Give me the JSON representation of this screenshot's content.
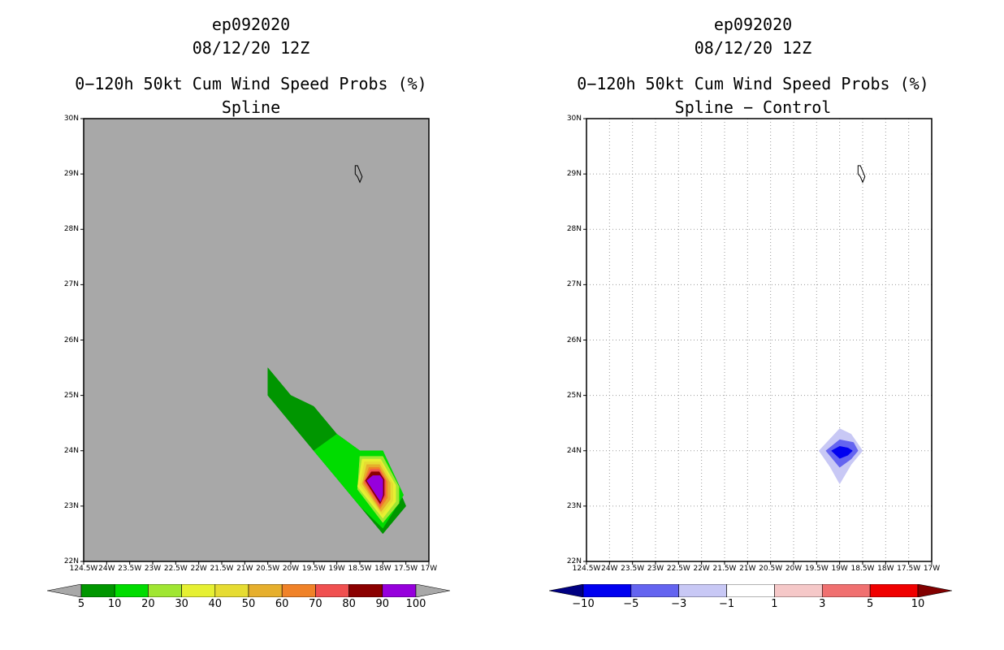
{
  "left_panel": {
    "storm_id": "ep092020",
    "datetime": "08/12/20 12Z",
    "product": "0−120h 50kt Cum Wind Speed Probs (%)",
    "subtitle": "Spline",
    "plot_bg": "#a8a8a8"
  },
  "right_panel": {
    "storm_id": "ep092020",
    "datetime": "08/12/20 12Z",
    "product": "0−120h 50kt Cum Wind Speed Probs (%)",
    "subtitle": "Spline − Control",
    "plot_bg": "#ffffff"
  },
  "chart_data": [
    {
      "type": "heatmap",
      "title": "0−120h 50kt Cum Wind Speed Probs (%) - Spline",
      "x_unit": "longitude (°W)",
      "y_unit": "latitude (°N)",
      "xlim": [
        124.5,
        17
      ],
      "ylim": [
        22,
        30
      ],
      "x_ticks": [
        "124.5W",
        "24W",
        "23.5W",
        "23W",
        "22.5W",
        "22W",
        "21.5W",
        "21W",
        "20.5W",
        "20W",
        "19.5W",
        "19W",
        "18.5W",
        "18W",
        "17.5W",
        "17W"
      ],
      "y_ticks": [
        "22N",
        "23N",
        "24N",
        "25N",
        "26N",
        "27N",
        "28N",
        "29N",
        "30N"
      ],
      "grid": false,
      "colorbar": {
        "labels": [
          "5",
          "10",
          "20",
          "30",
          "40",
          "50",
          "60",
          "70",
          "80",
          "90",
          "100"
        ],
        "colors": [
          "#009600",
          "#00dc00",
          "#a0e632",
          "#e6f032",
          "#e6dc32",
          "#e6af2d",
          "#f08228",
          "#f05050",
          "#8b0000",
          "#9600dc"
        ],
        "extend_colors": [
          "#a8a8a8",
          "#a8a8a8"
        ]
      },
      "contours": [
        {
          "level": 5,
          "color": "#009600",
          "points": [
            [
              20.5,
              25.5
            ],
            [
              20.0,
              25.0
            ],
            [
              19.5,
              24.8
            ],
            [
              19.0,
              24.3
            ],
            [
              18.5,
              24.0
            ],
            [
              18.0,
              24.0
            ],
            [
              17.5,
              23.0
            ],
            [
              18.0,
              22.5
            ],
            [
              18.5,
              23.0
            ],
            [
              19.0,
              23.5
            ],
            [
              19.5,
              24.0
            ],
            [
              20.0,
              24.5
            ],
            [
              20.5,
              25.0
            ]
          ]
        },
        {
          "level": 10,
          "color": "#00dc00",
          "points": [
            [
              19.5,
              24.0
            ],
            [
              19.0,
              24.3
            ],
            [
              18.5,
              24.0
            ],
            [
              18.0,
              24.0
            ],
            [
              17.55,
              23.2
            ],
            [
              18.0,
              22.6
            ],
            [
              18.5,
              23.0
            ],
            [
              19.0,
              23.5
            ]
          ]
        },
        {
          "level": 20,
          "color": "#a0e632",
          "points": [
            [
              18.5,
              23.9
            ],
            [
              18.0,
              23.9
            ],
            [
              17.65,
              23.35
            ],
            [
              17.65,
              23.05
            ],
            [
              18.0,
              22.7
            ],
            [
              18.55,
              23.3
            ]
          ]
        },
        {
          "level": 30,
          "color": "#e6f032",
          "points": [
            [
              18.45,
              23.85
            ],
            [
              18.05,
              23.85
            ],
            [
              17.72,
              23.38
            ],
            [
              17.72,
              23.08
            ],
            [
              18.0,
              22.78
            ],
            [
              18.55,
              23.35
            ]
          ]
        },
        {
          "level": 40,
          "color": "#e6dc32",
          "points": [
            [
              18.4,
              23.8
            ],
            [
              18.05,
              23.8
            ],
            [
              17.78,
              23.4
            ],
            [
              17.78,
              23.1
            ],
            [
              18.02,
              22.85
            ],
            [
              18.5,
              23.38
            ]
          ]
        },
        {
          "level": 50,
          "color": "#e6af2d",
          "points": [
            [
              18.35,
              23.75
            ],
            [
              18.07,
              23.75
            ],
            [
              17.84,
              23.42
            ],
            [
              17.84,
              23.12
            ],
            [
              18.04,
              22.9
            ],
            [
              18.45,
              23.4
            ]
          ]
        },
        {
          "level": 60,
          "color": "#f08228",
          "points": [
            [
              18.3,
              23.7
            ],
            [
              18.08,
              23.7
            ],
            [
              17.9,
              23.44
            ],
            [
              17.9,
              23.15
            ],
            [
              18.06,
              22.95
            ],
            [
              18.42,
              23.42
            ]
          ]
        },
        {
          "level": 70,
          "color": "#f05050",
          "points": [
            [
              18.27,
              23.66
            ],
            [
              18.08,
              23.66
            ],
            [
              17.94,
              23.46
            ],
            [
              17.94,
              23.18
            ],
            [
              18.06,
              23.0
            ],
            [
              18.4,
              23.44
            ]
          ]
        },
        {
          "level": 80,
          "color": "#8b0000",
          "points": [
            [
              18.25,
              23.62
            ],
            [
              18.08,
              23.62
            ],
            [
              17.97,
              23.48
            ],
            [
              17.97,
              23.2
            ],
            [
              18.06,
              23.04
            ],
            [
              18.38,
              23.46
            ]
          ]
        },
        {
          "level": 90,
          "color": "#9600dc",
          "points": [
            [
              18.22,
              23.55
            ],
            [
              18.06,
              23.55
            ],
            [
              18.0,
              23.48
            ],
            [
              18.0,
              23.2
            ],
            [
              18.05,
              23.08
            ],
            [
              18.35,
              23.46
            ]
          ]
        }
      ],
      "island": [
        [
          18.55,
          29.15
        ],
        [
          18.5,
          29.05
        ],
        [
          18.45,
          28.95
        ],
        [
          18.5,
          28.85
        ],
        [
          18.55,
          28.95
        ],
        [
          18.6,
          29.0
        ],
        [
          18.6,
          29.15
        ]
      ]
    },
    {
      "type": "heatmap",
      "title": "0−120h 50kt Cum Wind Speed Probs (%) - Spline − Control",
      "x_unit": "longitude (°W)",
      "y_unit": "latitude (°N)",
      "xlim": [
        124.5,
        17
      ],
      "ylim": [
        22,
        30
      ],
      "x_ticks": [
        "124.5W",
        "24W",
        "23.5W",
        "23W",
        "22.5W",
        "22W",
        "21.5W",
        "21W",
        "20.5W",
        "20W",
        "19.5W",
        "19W",
        "18.5W",
        "18W",
        "17.5W",
        "17W"
      ],
      "y_ticks": [
        "22N",
        "23N",
        "24N",
        "25N",
        "26N",
        "27N",
        "28N",
        "29N",
        "30N"
      ],
      "grid": true,
      "colorbar": {
        "labels": [
          "−10",
          "−5",
          "−3",
          "−1",
          "1",
          "3",
          "5",
          "10"
        ],
        "colors": [
          "#0000f0",
          "#6464f0",
          "#c8c8f5",
          "#ffffff",
          "#f5c8c8",
          "#f07070",
          "#f00000"
        ],
        "extend_colors": [
          "#000082",
          "#820000"
        ]
      },
      "contours": [
        {
          "level": -1,
          "color": "#c8c8f5",
          "points": [
            [
              19.0,
              24.4
            ],
            [
              18.75,
              24.3
            ],
            [
              18.5,
              24.0
            ],
            [
              18.75,
              23.75
            ],
            [
              19.0,
              23.4
            ],
            [
              19.2,
              23.7
            ],
            [
              19.45,
              24.0
            ]
          ]
        },
        {
          "level": -3,
          "color": "#6464f0",
          "points": [
            [
              19.0,
              24.2
            ],
            [
              18.7,
              24.15
            ],
            [
              18.6,
              24.0
            ],
            [
              18.75,
              23.85
            ],
            [
              19.0,
              23.7
            ],
            [
              19.3,
              24.0
            ]
          ]
        },
        {
          "level": -5,
          "color": "#0000f0",
          "points": [
            [
              19.0,
              24.08
            ],
            [
              18.82,
              24.05
            ],
            [
              18.72,
              24.0
            ],
            [
              18.82,
              23.92
            ],
            [
              19.0,
              23.86
            ],
            [
              19.18,
              24.0
            ]
          ]
        }
      ],
      "island": [
        [
          18.55,
          29.15
        ],
        [
          18.5,
          29.05
        ],
        [
          18.45,
          28.95
        ],
        [
          18.5,
          28.85
        ],
        [
          18.55,
          28.95
        ],
        [
          18.6,
          29.0
        ],
        [
          18.6,
          29.15
        ]
      ]
    }
  ]
}
